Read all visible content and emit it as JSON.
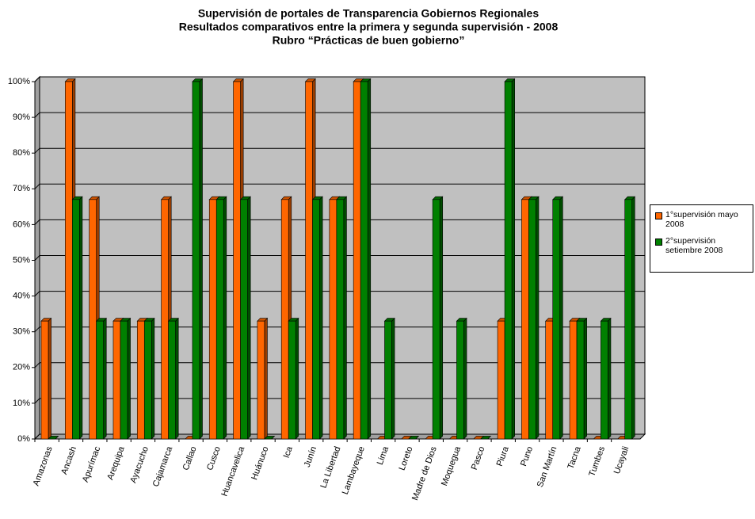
{
  "chart_data": {
    "type": "bar",
    "title": [
      "Supervisión de portales de Transparencia Gobiernos Regionales",
      "Resultados comparativos entre la primera y segunda supervisión - 2008",
      "Rubro “Prácticas de buen gobierno”"
    ],
    "categories": [
      "Amazonas",
      "Ancash",
      "Apurímac",
      "Arequipa",
      "Ayacucho",
      "Cajamarca",
      "Callao",
      "Cusco",
      "Huancavelica",
      "Huánuco",
      "Ica",
      "Junín",
      "La Libertad",
      "Lambayeque",
      "Lima",
      "Loreto",
      "Madre de Dios",
      "Moquegua",
      "Pasco",
      "Piura",
      "Puno",
      "San Martín",
      "Tacna",
      "Tumbes",
      "Ucayali"
    ],
    "series": [
      {
        "name": "1°supervisión mayo 2008",
        "color": "#ff6600",
        "values": [
          33,
          100,
          67,
          33,
          33,
          67,
          0,
          67,
          100,
          33,
          67,
          100,
          67,
          100,
          0,
          0,
          0,
          0,
          0,
          33,
          67,
          33,
          33,
          0,
          0
        ]
      },
      {
        "name": "2°supervisión setiembre 2008",
        "color": "#008000",
        "values": [
          0,
          67,
          33,
          33,
          33,
          33,
          100,
          67,
          67,
          0,
          33,
          67,
          67,
          100,
          33,
          0,
          67,
          33,
          0,
          100,
          67,
          67,
          33,
          33,
          67
        ]
      }
    ],
    "ylim": [
      0,
      100
    ],
    "yticks": [
      {
        "value": 0,
        "label": "0%"
      },
      {
        "value": 10,
        "label": "10%"
      },
      {
        "value": 20,
        "label": "20%"
      },
      {
        "value": 30,
        "label": "30%"
      },
      {
        "value": 40,
        "label": "40%"
      },
      {
        "value": 50,
        "label": "50%"
      },
      {
        "value": 60,
        "label": "60%"
      },
      {
        "value": 70,
        "label": "70%"
      },
      {
        "value": 80,
        "label": "80%"
      },
      {
        "value": 90,
        "label": "90%"
      },
      {
        "value": 100,
        "label": "100%"
      }
    ],
    "grid": true,
    "legend": "right"
  }
}
